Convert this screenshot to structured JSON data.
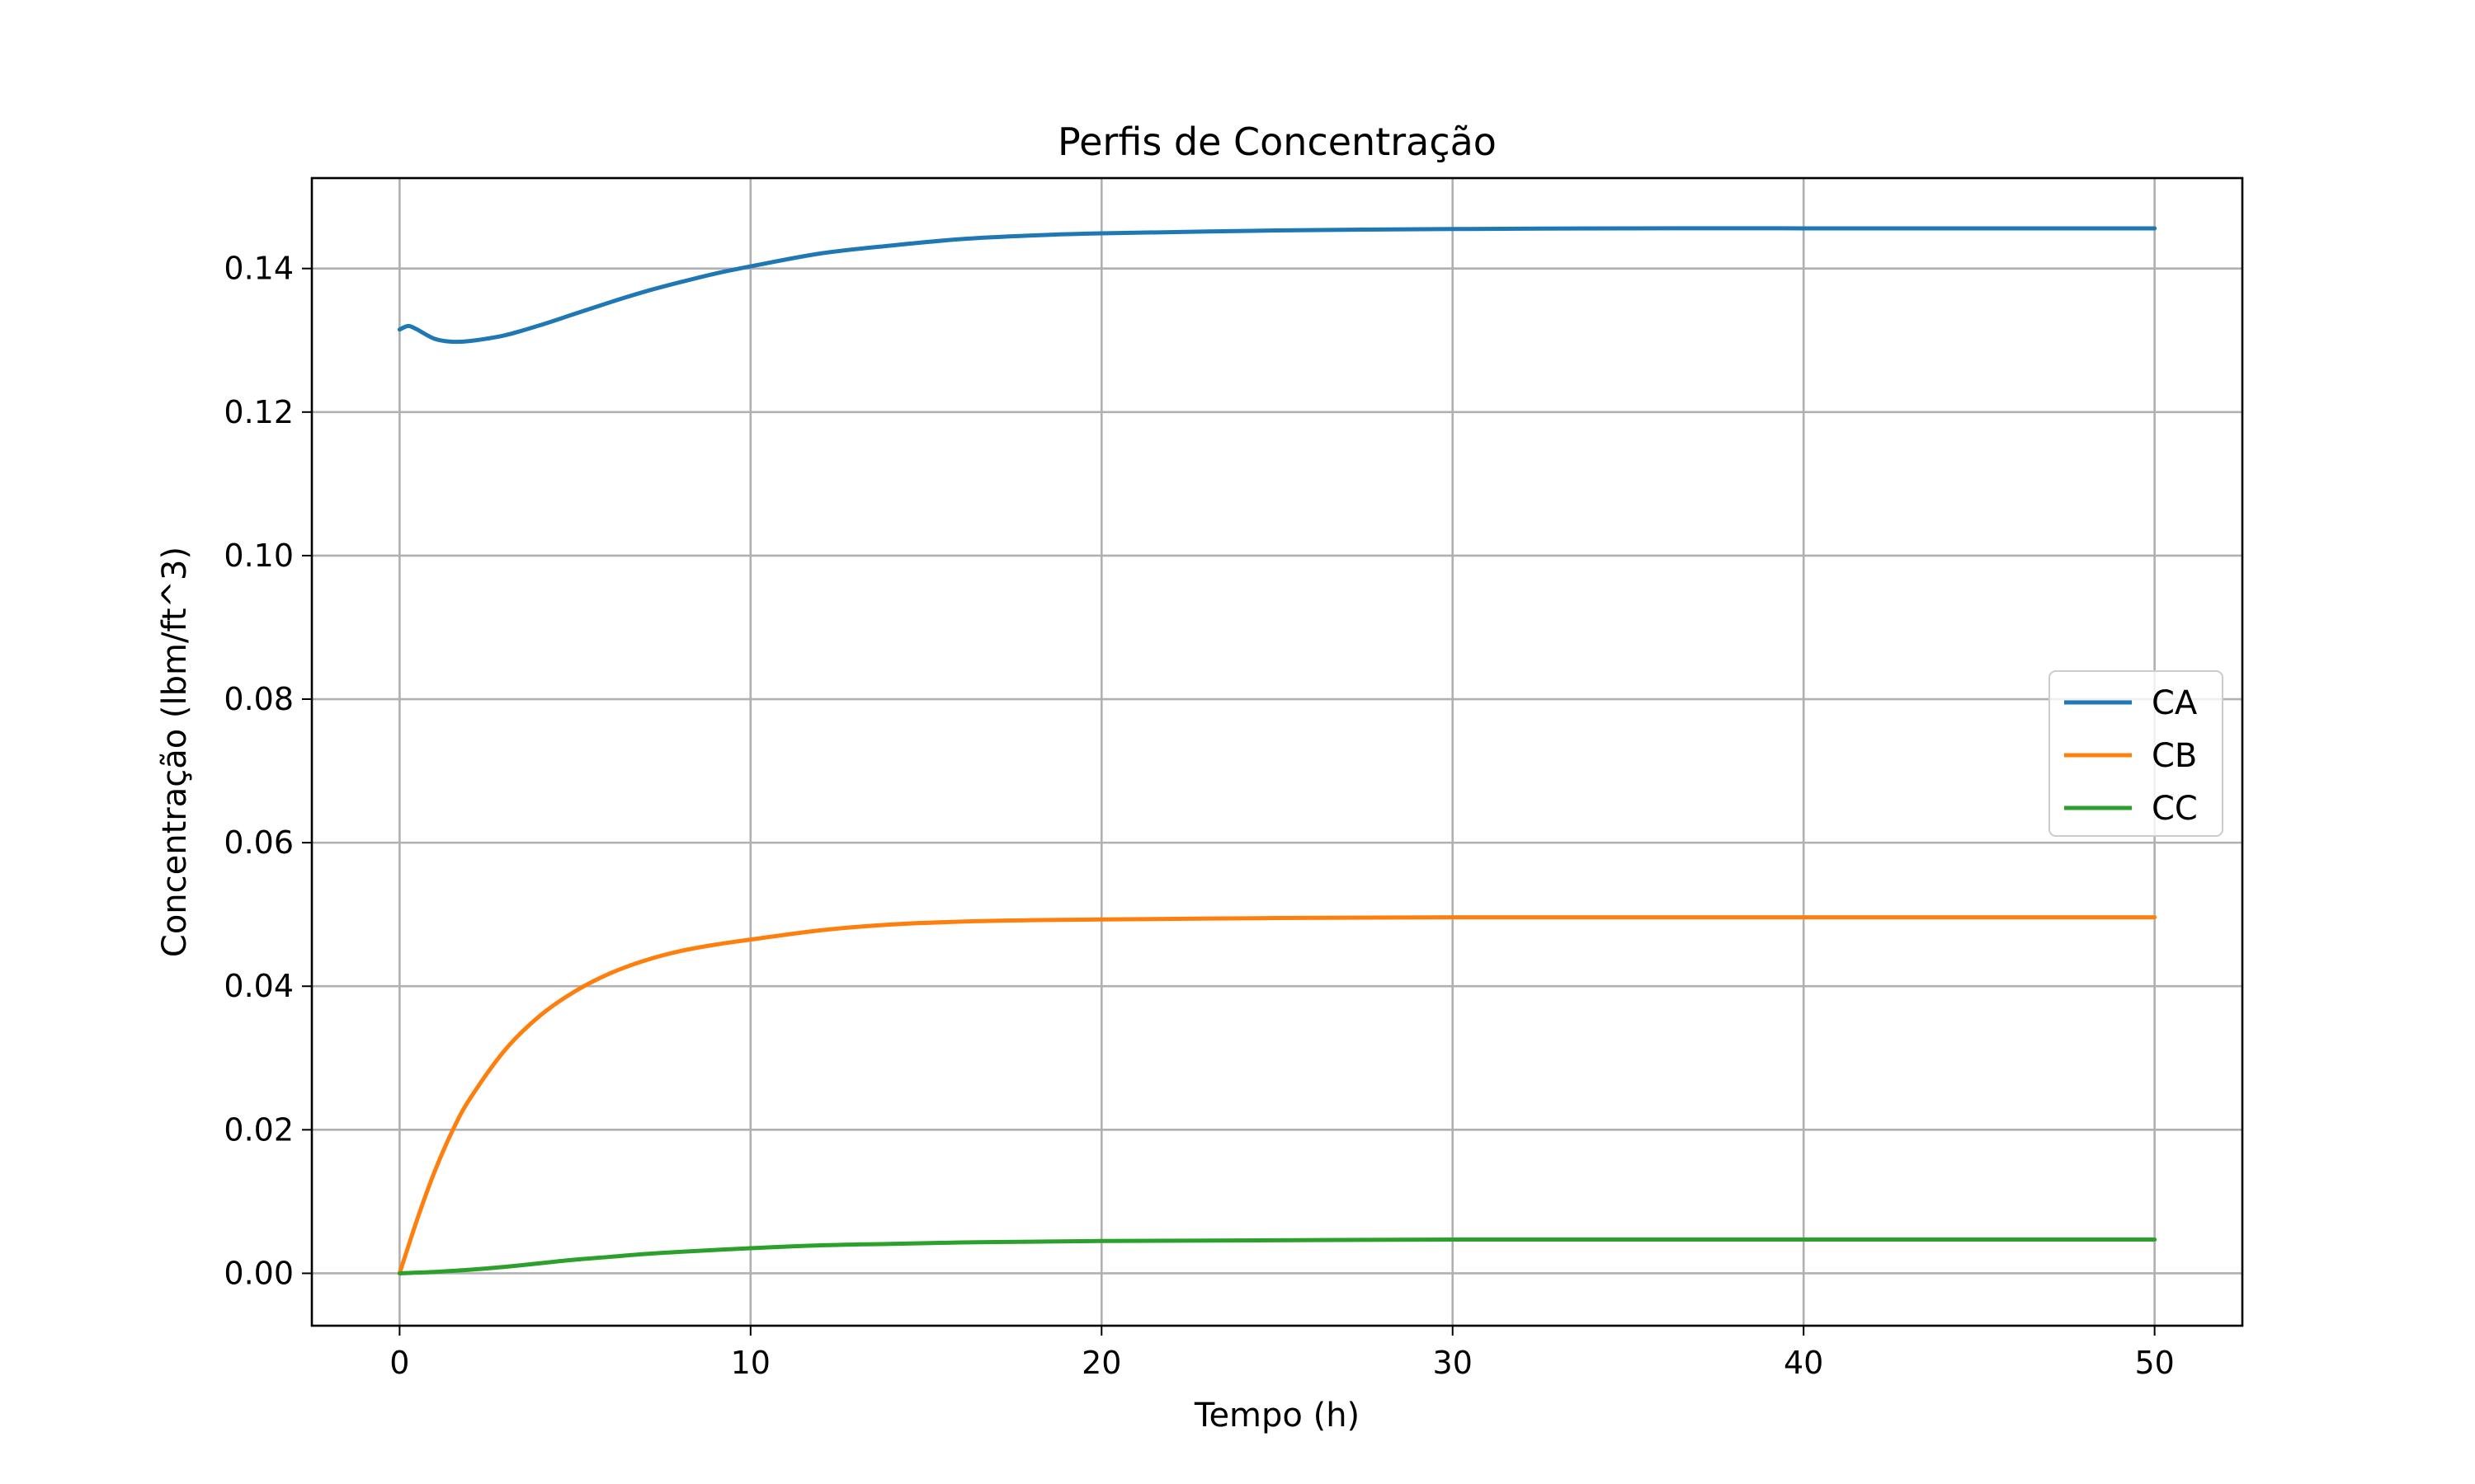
{
  "chart_data": {
    "type": "line",
    "title": "Perfis de Concentração",
    "xlabel": "Tempo (h)",
    "ylabel": "Concentração (lbm/ft^3)",
    "xlim": [
      -2.5,
      52.5
    ],
    "ylim": [
      -0.0073,
      0.1526
    ],
    "xticks": [
      0,
      10,
      20,
      30,
      40,
      50
    ],
    "xtick_labels": [
      "0",
      "10",
      "20",
      "30",
      "40",
      "50"
    ],
    "yticks": [
      0.0,
      0.02,
      0.04,
      0.06,
      0.08,
      0.1,
      0.12,
      0.14
    ],
    "ytick_labels": [
      "0.00",
      "0.02",
      "0.04",
      "0.06",
      "0.08",
      "0.10",
      "0.12",
      "0.14"
    ],
    "grid": true,
    "legend_position": "center-right",
    "series": [
      {
        "name": "CA",
        "color": "#1f77b4",
        "x": [
          0,
          0.25,
          0.5,
          1,
          1.5,
          2,
          3,
          4,
          5,
          6,
          7,
          8,
          9,
          10,
          12,
          14,
          16,
          18,
          20,
          25,
          30,
          35,
          40,
          45,
          50
        ],
        "y": [
          0.1315,
          0.132,
          0.1315,
          0.1302,
          0.1298,
          0.1299,
          0.1307,
          0.1321,
          0.1337,
          0.1353,
          0.1368,
          0.1381,
          0.1393,
          0.1403,
          0.1421,
          0.1432,
          0.1441,
          0.1446,
          0.1449,
          0.1453,
          0.1455,
          0.1456,
          0.1456,
          0.1456,
          0.1456
        ]
      },
      {
        "name": "CB",
        "color": "#ff7f0e",
        "x": [
          0,
          0.5,
          1,
          1.5,
          2,
          3,
          4,
          5,
          6,
          7,
          8,
          9,
          10,
          12,
          14,
          16,
          18,
          20,
          25,
          30,
          35,
          40,
          45,
          50
        ],
        "y": [
          0.0,
          0.0075,
          0.0142,
          0.0198,
          0.0243,
          0.0311,
          0.0359,
          0.0393,
          0.0418,
          0.0436,
          0.0449,
          0.0458,
          0.0465,
          0.0478,
          0.0486,
          0.049,
          0.0492,
          0.0493,
          0.0495,
          0.0496,
          0.0496,
          0.0496,
          0.0496,
          0.0496
        ]
      },
      {
        "name": "CC",
        "color": "#2ca02c",
        "x": [
          0,
          1,
          2,
          3,
          4,
          5,
          6,
          7,
          8,
          10,
          12,
          14,
          16,
          18,
          20,
          25,
          30,
          35,
          40,
          45,
          50
        ],
        "y": [
          0.0,
          0.0002,
          0.0005,
          0.0009,
          0.0014,
          0.0019,
          0.0023,
          0.0027,
          0.003,
          0.0035,
          0.0039,
          0.0041,
          0.0043,
          0.0044,
          0.0045,
          0.0046,
          0.0047,
          0.0047,
          0.0047,
          0.0047,
          0.0047
        ]
      }
    ]
  }
}
